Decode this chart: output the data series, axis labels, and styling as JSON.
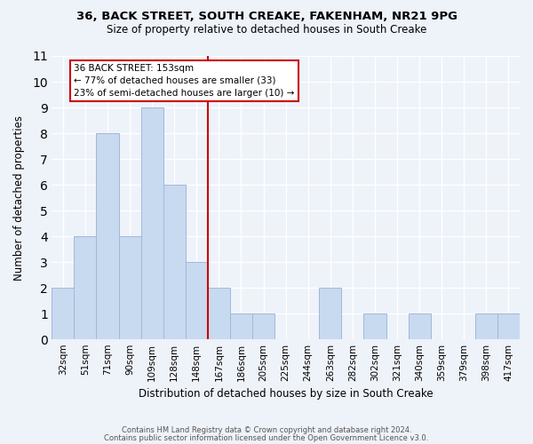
{
  "title": "36, BACK STREET, SOUTH CREAKE, FAKENHAM, NR21 9PG",
  "subtitle": "Size of property relative to detached houses in South Creake",
  "xlabel": "Distribution of detached houses by size in South Creake",
  "ylabel": "Number of detached properties",
  "footer_line1": "Contains HM Land Registry data © Crown copyright and database right 2024.",
  "footer_line2": "Contains public sector information licensed under the Open Government Licence v3.0.",
  "bins": [
    "32sqm",
    "51sqm",
    "71sqm",
    "90sqm",
    "109sqm",
    "128sqm",
    "148sqm",
    "167sqm",
    "186sqm",
    "205sqm",
    "225sqm",
    "244sqm",
    "263sqm",
    "282sqm",
    "302sqm",
    "321sqm",
    "340sqm",
    "359sqm",
    "379sqm",
    "398sqm",
    "417sqm"
  ],
  "counts": [
    2,
    4,
    8,
    4,
    9,
    6,
    3,
    2,
    1,
    1,
    0,
    0,
    2,
    0,
    1,
    0,
    1,
    0,
    0,
    1,
    1
  ],
  "bar_color": "#c8daf0",
  "bar_edge_color": "#a0b8d8",
  "bg_color": "#eef2f9",
  "grid_color": "#ffffff",
  "annotation_line1": "36 BACK STREET: 153sqm",
  "annotation_line2": "← 77% of detached houses are smaller (33)",
  "annotation_line3": "23% of semi-detached houses are larger (10) →",
  "annotation_box_edge": "#cc0000",
  "annotation_box_fill": "#ffffff",
  "vline_color": "#cc0000",
  "vline_x": 6.5,
  "ylim": [
    0,
    11
  ],
  "yticks": [
    0,
    1,
    2,
    3,
    4,
    5,
    6,
    7,
    8,
    9,
    10,
    11
  ]
}
